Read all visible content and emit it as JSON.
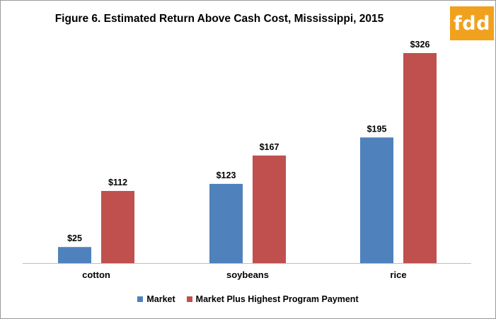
{
  "logo_text": "fdd",
  "colors": {
    "market": "#4f81bd",
    "program": "#c0504d",
    "logo_bg": "#f0a11e",
    "axis": "#bfbfbf"
  },
  "chart_data": {
    "type": "bar",
    "title": "Figure 6. Estimated Return Above Cash Cost, Mississippi, 2015",
    "categories": [
      "cotton",
      "soybeans",
      "rice"
    ],
    "series": [
      {
        "name": "Market",
        "values": [
          25,
          123,
          195
        ],
        "labels": [
          "$25",
          "$123",
          "$195"
        ]
      },
      {
        "name": "Market Plus Highest Program Payment",
        "values": [
          112,
          167,
          326
        ],
        "labels": [
          "$112",
          "$167",
          "$326"
        ]
      }
    ],
    "xlabel": "",
    "ylabel": "",
    "ylim": [
      0,
      326
    ],
    "grid": false,
    "legend_position": "bottom"
  }
}
